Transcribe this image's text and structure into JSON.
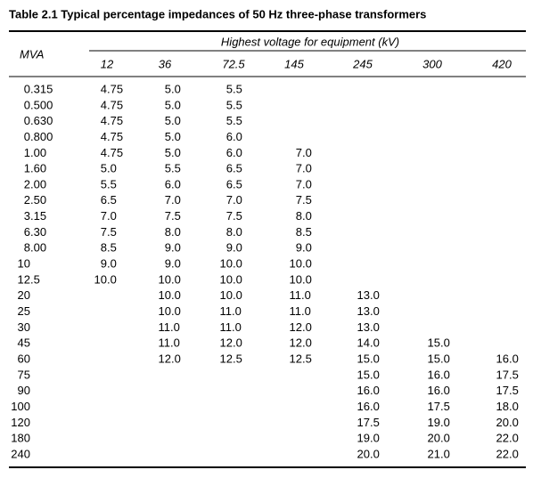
{
  "table": {
    "title": "Table 2.1 Typical percentage impedances of 50 Hz three-phase transformers",
    "row_header": "MVA",
    "group_header": "Highest voltage for equipment (kV)",
    "columns": [
      "12",
      "36",
      "72.5",
      "145",
      "245",
      "300",
      "420"
    ],
    "rows": [
      [
        "0.315",
        "4.75",
        "5.0",
        "5.5",
        null,
        null,
        null,
        null
      ],
      [
        "0.500",
        "4.75",
        "5.0",
        "5.5",
        null,
        null,
        null,
        null
      ],
      [
        "0.630",
        "4.75",
        "5.0",
        "5.5",
        null,
        null,
        null,
        null
      ],
      [
        "0.800",
        "4.75",
        "5.0",
        "6.0",
        null,
        null,
        null,
        null
      ],
      [
        "1.00",
        "4.75",
        "5.0",
        "6.0",
        "7.0",
        null,
        null,
        null
      ],
      [
        "1.60",
        "5.0",
        "5.5",
        "6.5",
        "7.0",
        null,
        null,
        null
      ],
      [
        "2.00",
        "5.5",
        "6.0",
        "6.5",
        "7.0",
        null,
        null,
        null
      ],
      [
        "2.50",
        "6.5",
        "7.0",
        "7.0",
        "7.5",
        null,
        null,
        null
      ],
      [
        "3.15",
        "7.0",
        "7.5",
        "7.5",
        "8.0",
        null,
        null,
        null
      ],
      [
        "6.30",
        "7.5",
        "8.0",
        "8.0",
        "8.5",
        null,
        null,
        null
      ],
      [
        "8.00",
        "8.5",
        "9.0",
        "9.0",
        "9.0",
        null,
        null,
        null
      ],
      [
        "10",
        "9.0",
        "9.0",
        "10.0",
        "10.0",
        null,
        null,
        null
      ],
      [
        "12.5",
        "10.0",
        "10.0",
        "10.0",
        "10.0",
        null,
        null,
        null
      ],
      [
        "20",
        null,
        "10.0",
        "10.0",
        "11.0",
        "13.0",
        null,
        null
      ],
      [
        "25",
        null,
        "10.0",
        "11.0",
        "11.0",
        "13.0",
        null,
        null
      ],
      [
        "30",
        null,
        "11.0",
        "11.0",
        "12.0",
        "13.0",
        null,
        null
      ],
      [
        "45",
        null,
        "11.0",
        "12.0",
        "12.0",
        "14.0",
        "15.0",
        null
      ],
      [
        "60",
        null,
        "12.0",
        "12.5",
        "12.5",
        "15.0",
        "15.0",
        "16.0"
      ],
      [
        "75",
        null,
        null,
        null,
        null,
        "15.0",
        "16.0",
        "17.5"
      ],
      [
        "90",
        null,
        null,
        null,
        null,
        "16.0",
        "16.0",
        "17.5"
      ],
      [
        "100",
        null,
        null,
        null,
        null,
        "16.0",
        "17.5",
        "18.0"
      ],
      [
        "120",
        null,
        null,
        null,
        null,
        "17.5",
        "19.0",
        "20.0"
      ],
      [
        "180",
        null,
        null,
        null,
        null,
        "19.0",
        "20.0",
        "22.0"
      ],
      [
        "240",
        null,
        null,
        null,
        null,
        "20.0",
        "21.0",
        "22.0"
      ]
    ]
  }
}
